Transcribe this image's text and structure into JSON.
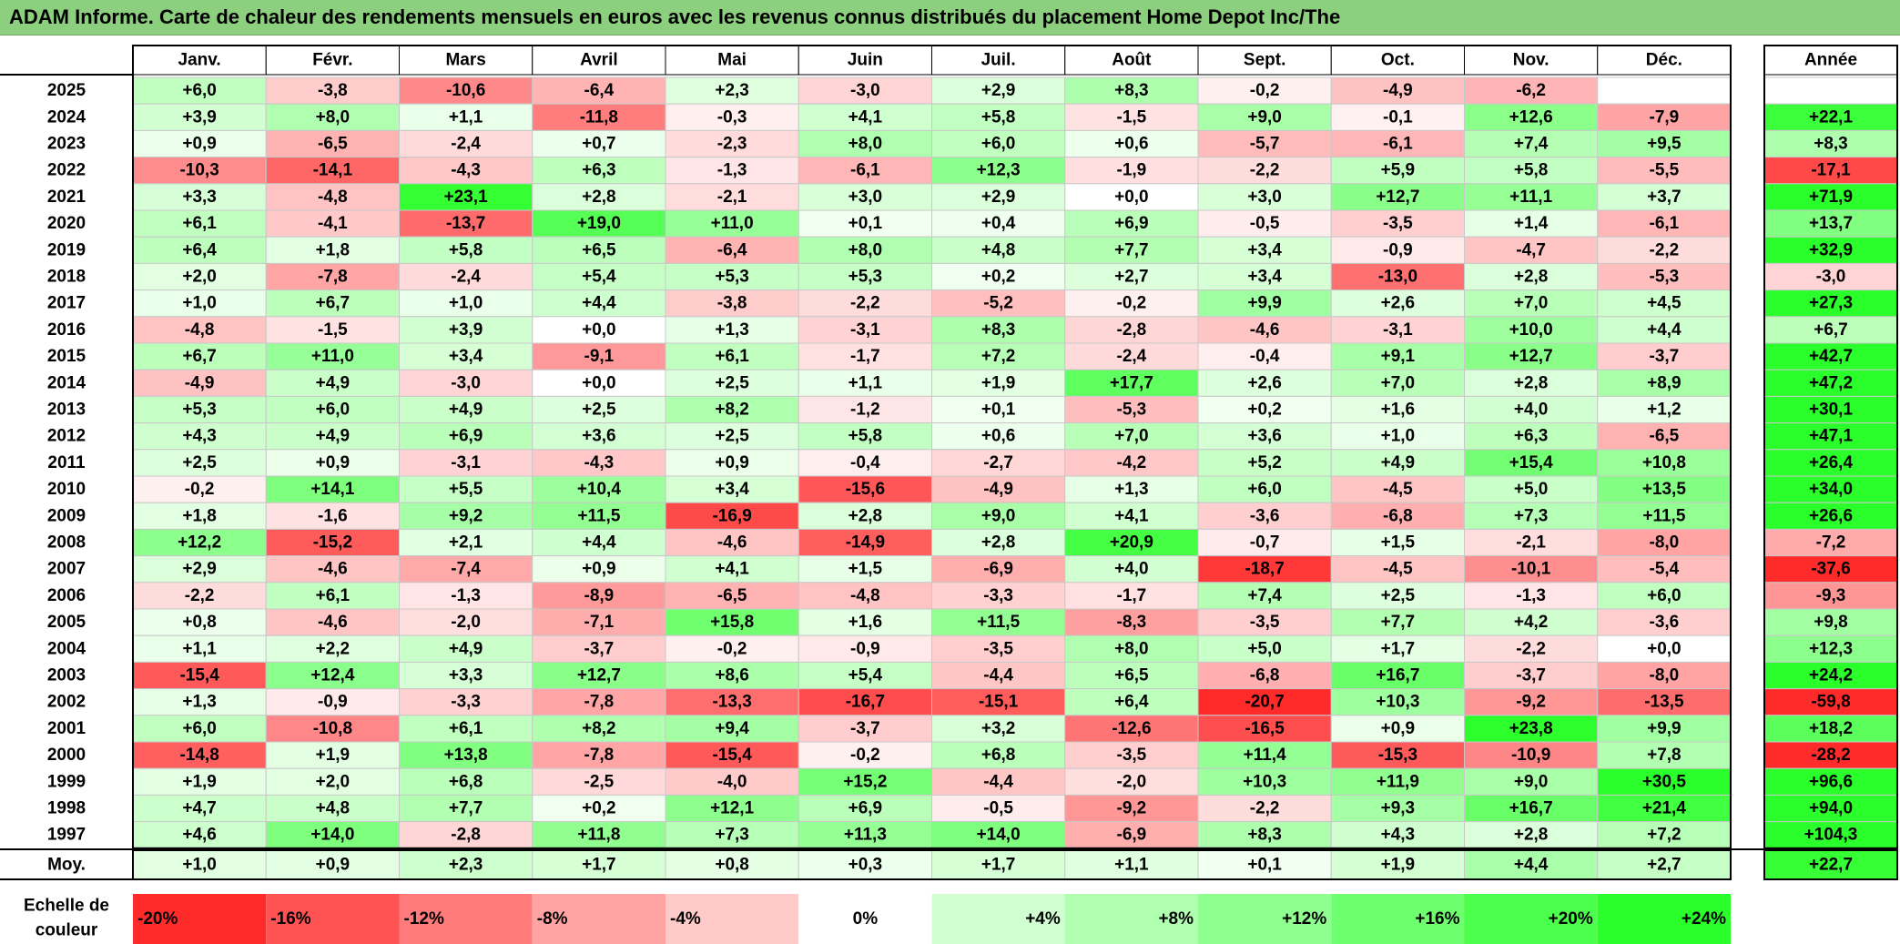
{
  "title": "ADAM Informe. Carte de chaleur des rendements mensuels en euros avec les revenus connus distribués du placement Home Depot Inc/The",
  "chart_data": {
    "type": "heatmap",
    "title": "ADAM Informe. Carte de chaleur des rendements mensuels en euros avec les revenus connus distribués du placement Home Depot Inc/The",
    "columns": [
      "Janv.",
      "Févr.",
      "Mars",
      "Avril",
      "Mai",
      "Juin",
      "Juil.",
      "Août",
      "Sept.",
      "Oct.",
      "Nov.",
      "Déc."
    ],
    "annual_header": "Année",
    "rows": [
      {
        "year": "2025",
        "values": [
          "+6,0",
          "-3,8",
          "-10,6",
          "-6,4",
          "+2,3",
          "-3,0",
          "+2,9",
          "+8,3",
          "-0,2",
          "-4,9",
          "-6,2",
          ""
        ],
        "annual": ""
      },
      {
        "year": "2024",
        "values": [
          "+3,9",
          "+8,0",
          "+1,1",
          "-11,8",
          "-0,3",
          "+4,1",
          "+5,8",
          "-1,5",
          "+9,0",
          "-0,1",
          "+12,6",
          "-7,9"
        ],
        "annual": "+22,1"
      },
      {
        "year": "2023",
        "values": [
          "+0,9",
          "-6,5",
          "-2,4",
          "+0,7",
          "-2,3",
          "+8,0",
          "+6,0",
          "+0,6",
          "-5,7",
          "-6,1",
          "+7,4",
          "+9,5"
        ],
        "annual": "+8,3"
      },
      {
        "year": "2022",
        "values": [
          "-10,3",
          "-14,1",
          "-4,3",
          "+6,3",
          "-1,3",
          "-6,1",
          "+12,3",
          "-1,9",
          "-2,2",
          "+5,9",
          "+5,8",
          "-5,5"
        ],
        "annual": "-17,1"
      },
      {
        "year": "2021",
        "values": [
          "+3,3",
          "-4,8",
          "+23,1",
          "+2,8",
          "-2,1",
          "+3,0",
          "+2,9",
          "+0,0",
          "+3,0",
          "+12,7",
          "+11,1",
          "+3,7"
        ],
        "annual": "+71,9"
      },
      {
        "year": "2020",
        "values": [
          "+6,1",
          "-4,1",
          "-13,7",
          "+19,0",
          "+11,0",
          "+0,1",
          "+0,4",
          "+6,9",
          "-0,5",
          "-3,5",
          "+1,4",
          "-6,1"
        ],
        "annual": "+13,7"
      },
      {
        "year": "2019",
        "values": [
          "+6,4",
          "+1,8",
          "+5,8",
          "+6,5",
          "-6,4",
          "+8,0",
          "+4,8",
          "+7,7",
          "+3,4",
          "-0,9",
          "-4,7",
          "-2,2"
        ],
        "annual": "+32,9"
      },
      {
        "year": "2018",
        "values": [
          "+2,0",
          "-7,8",
          "-2,4",
          "+5,4",
          "+5,3",
          "+5,3",
          "+0,2",
          "+2,7",
          "+3,4",
          "-13,0",
          "+2,8",
          "-5,3"
        ],
        "annual": "-3,0"
      },
      {
        "year": "2017",
        "values": [
          "+1,0",
          "+6,7",
          "+1,0",
          "+4,4",
          "-3,8",
          "-2,2",
          "-5,2",
          "-0,2",
          "+9,9",
          "+2,6",
          "+7,0",
          "+4,5"
        ],
        "annual": "+27,3"
      },
      {
        "year": "2016",
        "values": [
          "-4,8",
          "-1,5",
          "+3,9",
          "+0,0",
          "+1,3",
          "-3,1",
          "+8,3",
          "-2,8",
          "-4,6",
          "-3,1",
          "+10,0",
          "+4,4"
        ],
        "annual": "+6,7"
      },
      {
        "year": "2015",
        "values": [
          "+6,7",
          "+11,0",
          "+3,4",
          "-9,1",
          "+6,1",
          "-1,7",
          "+7,2",
          "-2,4",
          "-0,4",
          "+9,1",
          "+12,7",
          "-3,7"
        ],
        "annual": "+42,7"
      },
      {
        "year": "2014",
        "values": [
          "-4,9",
          "+4,9",
          "-3,0",
          "+0,0",
          "+2,5",
          "+1,1",
          "+1,9",
          "+17,7",
          "+2,6",
          "+7,0",
          "+2,8",
          "+8,9"
        ],
        "annual": "+47,2"
      },
      {
        "year": "2013",
        "values": [
          "+5,3",
          "+6,0",
          "+4,9",
          "+2,5",
          "+8,2",
          "-1,2",
          "+0,1",
          "-5,3",
          "+0,2",
          "+1,6",
          "+4,0",
          "+1,2"
        ],
        "annual": "+30,1"
      },
      {
        "year": "2012",
        "values": [
          "+4,3",
          "+4,9",
          "+6,9",
          "+3,6",
          "+2,5",
          "+5,8",
          "+0,6",
          "+7,0",
          "+3,6",
          "+1,0",
          "+6,3",
          "-6,5"
        ],
        "annual": "+47,1"
      },
      {
        "year": "2011",
        "values": [
          "+2,5",
          "+0,9",
          "-3,1",
          "-4,3",
          "+0,9",
          "-0,4",
          "-2,7",
          "-4,2",
          "+5,2",
          "+4,9",
          "+15,4",
          "+10,8"
        ],
        "annual": "+26,4"
      },
      {
        "year": "2010",
        "values": [
          "-0,2",
          "+14,1",
          "+5,5",
          "+10,4",
          "+3,4",
          "-15,6",
          "-4,9",
          "+1,3",
          "+6,0",
          "-4,5",
          "+5,0",
          "+13,5"
        ],
        "annual": "+34,0"
      },
      {
        "year": "2009",
        "values": [
          "+1,8",
          "-1,6",
          "+9,2",
          "+11,5",
          "-16,9",
          "+2,8",
          "+9,0",
          "+4,1",
          "-3,6",
          "-6,8",
          "+7,3",
          "+11,5"
        ],
        "annual": "+26,6"
      },
      {
        "year": "2008",
        "values": [
          "+12,2",
          "-15,2",
          "+2,1",
          "+4,4",
          "-4,6",
          "-14,9",
          "+2,8",
          "+20,9",
          "-0,7",
          "+1,5",
          "-2,1",
          "-8,0"
        ],
        "annual": "-7,2"
      },
      {
        "year": "2007",
        "values": [
          "+2,9",
          "-4,6",
          "-7,4",
          "+0,9",
          "+4,1",
          "+1,5",
          "-6,9",
          "+4,0",
          "-18,7",
          "-4,5",
          "-10,1",
          "-5,4"
        ],
        "annual": "-37,6"
      },
      {
        "year": "2006",
        "values": [
          "-2,2",
          "+6,1",
          "-1,3",
          "-8,9",
          "-6,5",
          "-4,8",
          "-3,3",
          "-1,7",
          "+7,4",
          "+2,5",
          "-1,3",
          "+6,0"
        ],
        "annual": "-9,3"
      },
      {
        "year": "2005",
        "values": [
          "+0,8",
          "-4,6",
          "-2,0",
          "-7,1",
          "+15,8",
          "+1,6",
          "+11,5",
          "-8,3",
          "-3,5",
          "+7,7",
          "+4,2",
          "-3,6"
        ],
        "annual": "+9,8"
      },
      {
        "year": "2004",
        "values": [
          "+1,1",
          "+2,2",
          "+4,9",
          "-3,7",
          "-0,2",
          "-0,9",
          "-3,5",
          "+8,0",
          "+5,0",
          "+1,7",
          "-2,2",
          "+0,0"
        ],
        "annual": "+12,3"
      },
      {
        "year": "2003",
        "values": [
          "-15,4",
          "+12,4",
          "+3,3",
          "+12,7",
          "+8,6",
          "+5,4",
          "-4,4",
          "+6,5",
          "-6,8",
          "+16,7",
          "-3,7",
          "-8,0"
        ],
        "annual": "+24,2"
      },
      {
        "year": "2002",
        "values": [
          "+1,3",
          "-0,9",
          "-3,3",
          "-7,8",
          "-13,3",
          "-16,7",
          "-15,1",
          "+6,4",
          "-20,7",
          "+10,3",
          "-9,2",
          "-13,5"
        ],
        "annual": "-59,8"
      },
      {
        "year": "2001",
        "values": [
          "+6,0",
          "-10,8",
          "+6,1",
          "+8,2",
          "+9,4",
          "-3,7",
          "+3,2",
          "-12,6",
          "-16,5",
          "+0,9",
          "+23,8",
          "+9,9"
        ],
        "annual": "+18,2"
      },
      {
        "year": "2000",
        "values": [
          "-14,8",
          "+1,9",
          "+13,8",
          "-7,8",
          "-15,4",
          "-0,2",
          "+6,8",
          "-3,5",
          "+11,4",
          "-15,3",
          "-10,9",
          "+7,8"
        ],
        "annual": "-28,2"
      },
      {
        "year": "1999",
        "values": [
          "+1,9",
          "+2,0",
          "+6,8",
          "-2,5",
          "-4,0",
          "+15,2",
          "-4,4",
          "-2,0",
          "+10,3",
          "+11,9",
          "+9,0",
          "+30,5"
        ],
        "annual": "+96,6"
      },
      {
        "year": "1998",
        "values": [
          "+4,7",
          "+4,8",
          "+7,7",
          "+0,2",
          "+12,1",
          "+6,9",
          "-0,5",
          "-9,2",
          "-2,2",
          "+9,3",
          "+16,7",
          "+21,4"
        ],
        "annual": "+94,0"
      },
      {
        "year": "1997",
        "values": [
          "+4,6",
          "+14,0",
          "-2,8",
          "+11,8",
          "+7,3",
          "+11,3",
          "+14,0",
          "-6,9",
          "+8,3",
          "+4,3",
          "+2,8",
          "+7,2"
        ],
        "annual": "+104,3"
      }
    ],
    "average": {
      "label": "Moy.",
      "values": [
        "+1,0",
        "+0,9",
        "+2,3",
        "+1,7",
        "+0,8",
        "+0,3",
        "+1,7",
        "+1,1",
        "+0,1",
        "+1,9",
        "+4,4",
        "+2,7"
      ],
      "annual": "+22,7"
    },
    "scale": {
      "label_line1": "Echelle de",
      "label_line2": "couleur",
      "steps": [
        "-20%",
        "-16%",
        "-12%",
        "-8%",
        "-4%",
        "0%",
        "+4%",
        "+8%",
        "+12%",
        "+16%",
        "+20%",
        "+24%"
      ]
    },
    "colors": {
      "positive": "#00ff00",
      "negative": "#ff0000",
      "neutral": "#ffffff",
      "title_bar": "#8ccf7e"
    }
  }
}
